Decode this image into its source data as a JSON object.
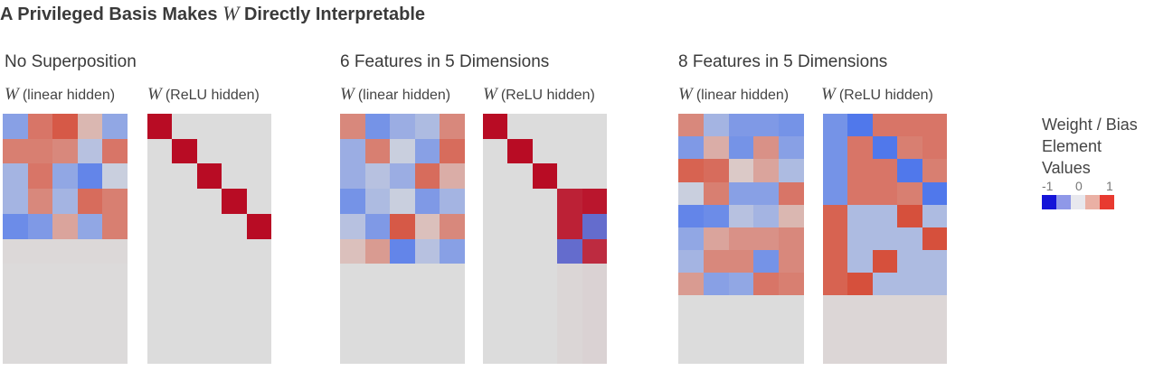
{
  "title": {
    "prefix": "A Privileged Basis Makes",
    "var": "W",
    "suffix": "Directly Interpretable"
  },
  "panels": [
    {
      "title": "No Superposition",
      "matrices": [
        {
          "var": "W",
          "label": "(linear hidden)"
        },
        {
          "var": "W",
          "label": "(ReLU hidden)"
        }
      ]
    },
    {
      "title": "6 Features in 5 Dimensions",
      "matrices": [
        {
          "var": "W",
          "label": "(linear hidden)"
        },
        {
          "var": "W",
          "label": "(ReLU hidden)"
        }
      ]
    },
    {
      "title": "8 Features in 5 Dimensions",
      "matrices": [
        {
          "var": "W",
          "label": "(linear hidden)"
        },
        {
          "var": "W",
          "label": "(ReLU hidden)"
        }
      ]
    }
  ],
  "legend": {
    "title": "Weight / Bias Element Values",
    "ticks": [
      "-1",
      "0",
      "1"
    ],
    "colors": [
      "#1414d8",
      "#8f98e8",
      "#e8e8ee",
      "#eab0a4",
      "#e83a30"
    ]
  },
  "colors": {
    "background": "#dcdcdc"
  },
  "matrices": {
    "p1_linear": {
      "cols": 5,
      "rows": [
        [
          -0.45,
          0.55,
          0.7,
          0.2,
          -0.4
        ],
        [
          0.5,
          0.5,
          0.45,
          -0.2,
          0.55
        ],
        [
          -0.3,
          0.55,
          -0.4,
          -0.65,
          -0.1
        ],
        [
          -0.3,
          0.45,
          -0.3,
          0.6,
          0.5
        ],
        [
          -0.6,
          -0.5,
          0.3,
          -0.4,
          0.5
        ],
        [
          0.02,
          0.02,
          0.02,
          0.02,
          0.02
        ],
        [
          0.01,
          0.01,
          0.01,
          0.01,
          0.01
        ],
        [
          0.01,
          0.01,
          0.01,
          0.01,
          0.01
        ],
        [
          0.01,
          0.01,
          0.01,
          0.01,
          0.01
        ],
        [
          0.01,
          0.01,
          0.01,
          0.01,
          0.01
        ]
      ]
    },
    "p1_relu": {
      "cols": 5,
      "rows": [
        [
          1,
          0,
          0,
          0,
          0
        ],
        [
          0,
          1,
          0,
          0,
          0
        ],
        [
          0,
          0,
          1,
          0,
          0
        ],
        [
          0,
          0,
          0,
          1,
          0
        ],
        [
          0,
          0,
          0,
          0,
          1
        ],
        [
          0,
          0,
          0,
          0,
          0
        ],
        [
          0,
          0,
          0,
          0,
          0
        ],
        [
          0,
          0,
          0,
          0,
          0
        ],
        [
          0,
          0,
          0,
          0,
          0
        ],
        [
          0,
          0,
          0,
          0,
          0
        ]
      ]
    },
    "p2_linear": {
      "cols": 5,
      "rows": [
        [
          0.45,
          -0.55,
          -0.35,
          -0.25,
          0.45
        ],
        [
          -0.35,
          0.5,
          -0.1,
          -0.45,
          0.6
        ],
        [
          -0.35,
          -0.2,
          -0.35,
          0.6,
          0.25
        ],
        [
          -0.55,
          -0.25,
          -0.1,
          -0.5,
          -0.3
        ],
        [
          -0.2,
          -0.5,
          0.7,
          0.15,
          0.45
        ],
        [
          0.15,
          0.35,
          -0.65,
          -0.2,
          -0.45
        ],
        [
          0,
          0,
          0,
          0,
          0
        ],
        [
          0,
          0,
          0,
          0,
          0
        ],
        [
          0,
          0,
          0,
          0,
          0
        ],
        [
          0,
          0,
          0,
          0,
          0
        ]
      ]
    },
    "p2_relu": {
      "cols": 5,
      "rows": [
        [
          1,
          0,
          0,
          0,
          0
        ],
        [
          0,
          1,
          0,
          0,
          0
        ],
        [
          0,
          0,
          1,
          0,
          0
        ],
        [
          0,
          0,
          0,
          0.9,
          0.95
        ],
        [
          0,
          0,
          0,
          0.9,
          -0.75
        ],
        [
          0,
          0,
          0,
          -0.75,
          0.85
        ],
        [
          0,
          0,
          0,
          0.03,
          0.05
        ],
        [
          0,
          0,
          0,
          0.03,
          0.05
        ],
        [
          0,
          0,
          0,
          0.03,
          0.05
        ],
        [
          0,
          0,
          0,
          0.03,
          0.05
        ]
      ]
    },
    "p3_linear": {
      "cols": 5,
      "rows": [
        [
          0.45,
          -0.3,
          -0.5,
          -0.5,
          -0.55
        ],
        [
          -0.5,
          0.25,
          -0.55,
          0.4,
          -0.45
        ],
        [
          0.65,
          0.6,
          0.1,
          0.3,
          -0.25
        ],
        [
          -0.1,
          0.5,
          -0.45,
          -0.45,
          0.55
        ],
        [
          -0.65,
          -0.6,
          -0.2,
          -0.3,
          0.2
        ],
        [
          -0.4,
          0.3,
          0.4,
          0.4,
          0.45
        ],
        [
          -0.3,
          0.45,
          0.45,
          -0.55,
          0.45
        ],
        [
          0.35,
          -0.45,
          -0.4,
          0.55,
          0.5
        ],
        [
          0,
          0,
          0,
          0,
          0
        ],
        [
          0,
          0,
          0,
          0,
          0
        ],
        [
          0,
          0,
          0,
          0,
          0
        ]
      ]
    },
    "p3_relu": {
      "cols": 5,
      "rows": [
        [
          -0.55,
          -0.9,
          0.55,
          0.55,
          0.55
        ],
        [
          -0.55,
          0.55,
          -0.9,
          0.5,
          0.55
        ],
        [
          -0.55,
          0.55,
          0.55,
          -0.9,
          0.5
        ],
        [
          -0.55,
          0.55,
          0.55,
          0.5,
          -0.9
        ],
        [
          0.65,
          -0.25,
          -0.25,
          0.85,
          -0.25
        ],
        [
          0.65,
          -0.25,
          -0.25,
          -0.25,
          0.85
        ],
        [
          0.65,
          -0.25,
          0.85,
          -0.25,
          -0.25
        ],
        [
          0.65,
          0.85,
          -0.25,
          -0.25,
          -0.25
        ],
        [
          0.03,
          0.03,
          0.03,
          0.03,
          0.03
        ],
        [
          0.03,
          0.03,
          0.03,
          0.03,
          0.03
        ],
        [
          0.03,
          0.03,
          0.03,
          0.03,
          0.03
        ]
      ]
    }
  }
}
